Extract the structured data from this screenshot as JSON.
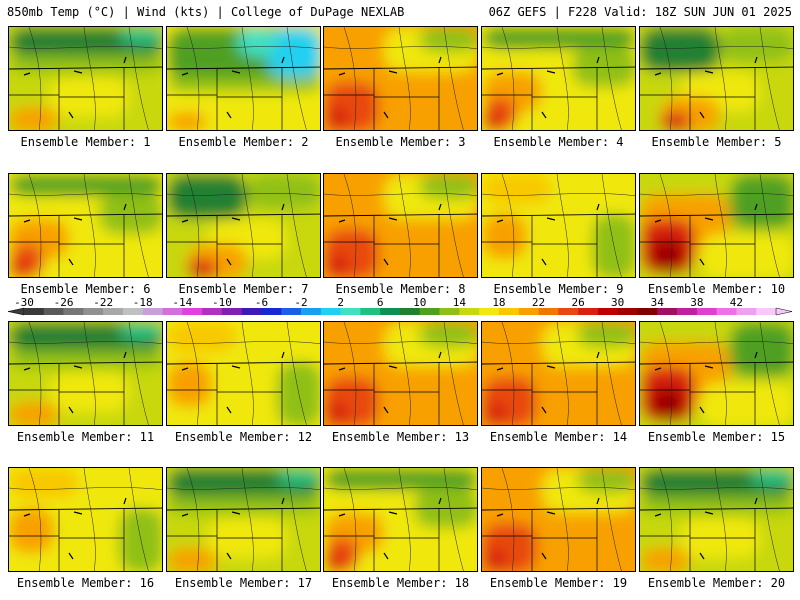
{
  "header": {
    "left": "850mb Temp (°C) | Wind (kts) | College of DuPage NEXLAB",
    "right": "06Z GEFS | F228 Valid: 18Z SUN JUN 01 2025"
  },
  "member_prefix": "Ensemble Member: ",
  "members": [
    {
      "label": "Ensemble Member: 1",
      "scheme": "green-north"
    },
    {
      "label": "Ensemble Member: 2",
      "scheme": "cyan-north"
    },
    {
      "label": "Ensemble Member: 3",
      "scheme": "warm"
    },
    {
      "label": "Ensemble Member: 4",
      "scheme": "warm-green"
    },
    {
      "label": "Ensemble Member: 5",
      "scheme": "green-west"
    },
    {
      "label": "Ensemble Member: 6",
      "scheme": "warm-green"
    },
    {
      "label": "Ensemble Member: 7",
      "scheme": "green-west"
    },
    {
      "label": "Ensemble Member: 8",
      "scheme": "warm"
    },
    {
      "label": "Ensemble Member: 9",
      "scheme": "yellow"
    },
    {
      "label": "Ensemble Member: 10",
      "scheme": "hot"
    },
    {
      "label": "Ensemble Member: 11",
      "scheme": "green-north"
    },
    {
      "label": "Ensemble Member: 12",
      "scheme": "yellow"
    },
    {
      "label": "Ensemble Member: 13",
      "scheme": "warm"
    },
    {
      "label": "Ensemble Member: 14",
      "scheme": "warm"
    },
    {
      "label": "Ensemble Member: 15",
      "scheme": "hot"
    },
    {
      "label": "Ensemble Member: 16",
      "scheme": "yellow"
    },
    {
      "label": "Ensemble Member: 17",
      "scheme": "green-north"
    },
    {
      "label": "Ensemble Member: 18",
      "scheme": "warm-green"
    },
    {
      "label": "Ensemble Member: 19",
      "scheme": "warm"
    },
    {
      "label": "Ensemble Member: 20",
      "scheme": "green-north"
    }
  ],
  "colorbar": {
    "ticks": [
      "-30",
      "-26",
      "-22",
      "-18",
      "-14",
      "-10",
      "-6",
      "-2",
      "2",
      "6",
      "10",
      "14",
      "18",
      "22",
      "26",
      "30",
      "34",
      "38",
      "42"
    ],
    "colors": [
      "#3a3a3a",
      "#5a5a5a",
      "#767676",
      "#909090",
      "#a8a8a8",
      "#c0c0c0",
      "#c8a0d8",
      "#d070d8",
      "#e040e0",
      "#b030c0",
      "#8020b0",
      "#4018b8",
      "#1828d0",
      "#1860e8",
      "#18a0f0",
      "#20d0f0",
      "#40e0c0",
      "#20c080",
      "#109050",
      "#208030",
      "#50a020",
      "#90c018",
      "#c8d810",
      "#f0e810",
      "#f8c800",
      "#f8a000",
      "#f07800",
      "#e84810",
      "#d82010",
      "#c00000",
      "#a00000",
      "#800000",
      "#a01060",
      "#c020a0",
      "#e040d0",
      "#f070e8",
      "#f0a0f0",
      "#f8c8f8"
    ]
  }
}
